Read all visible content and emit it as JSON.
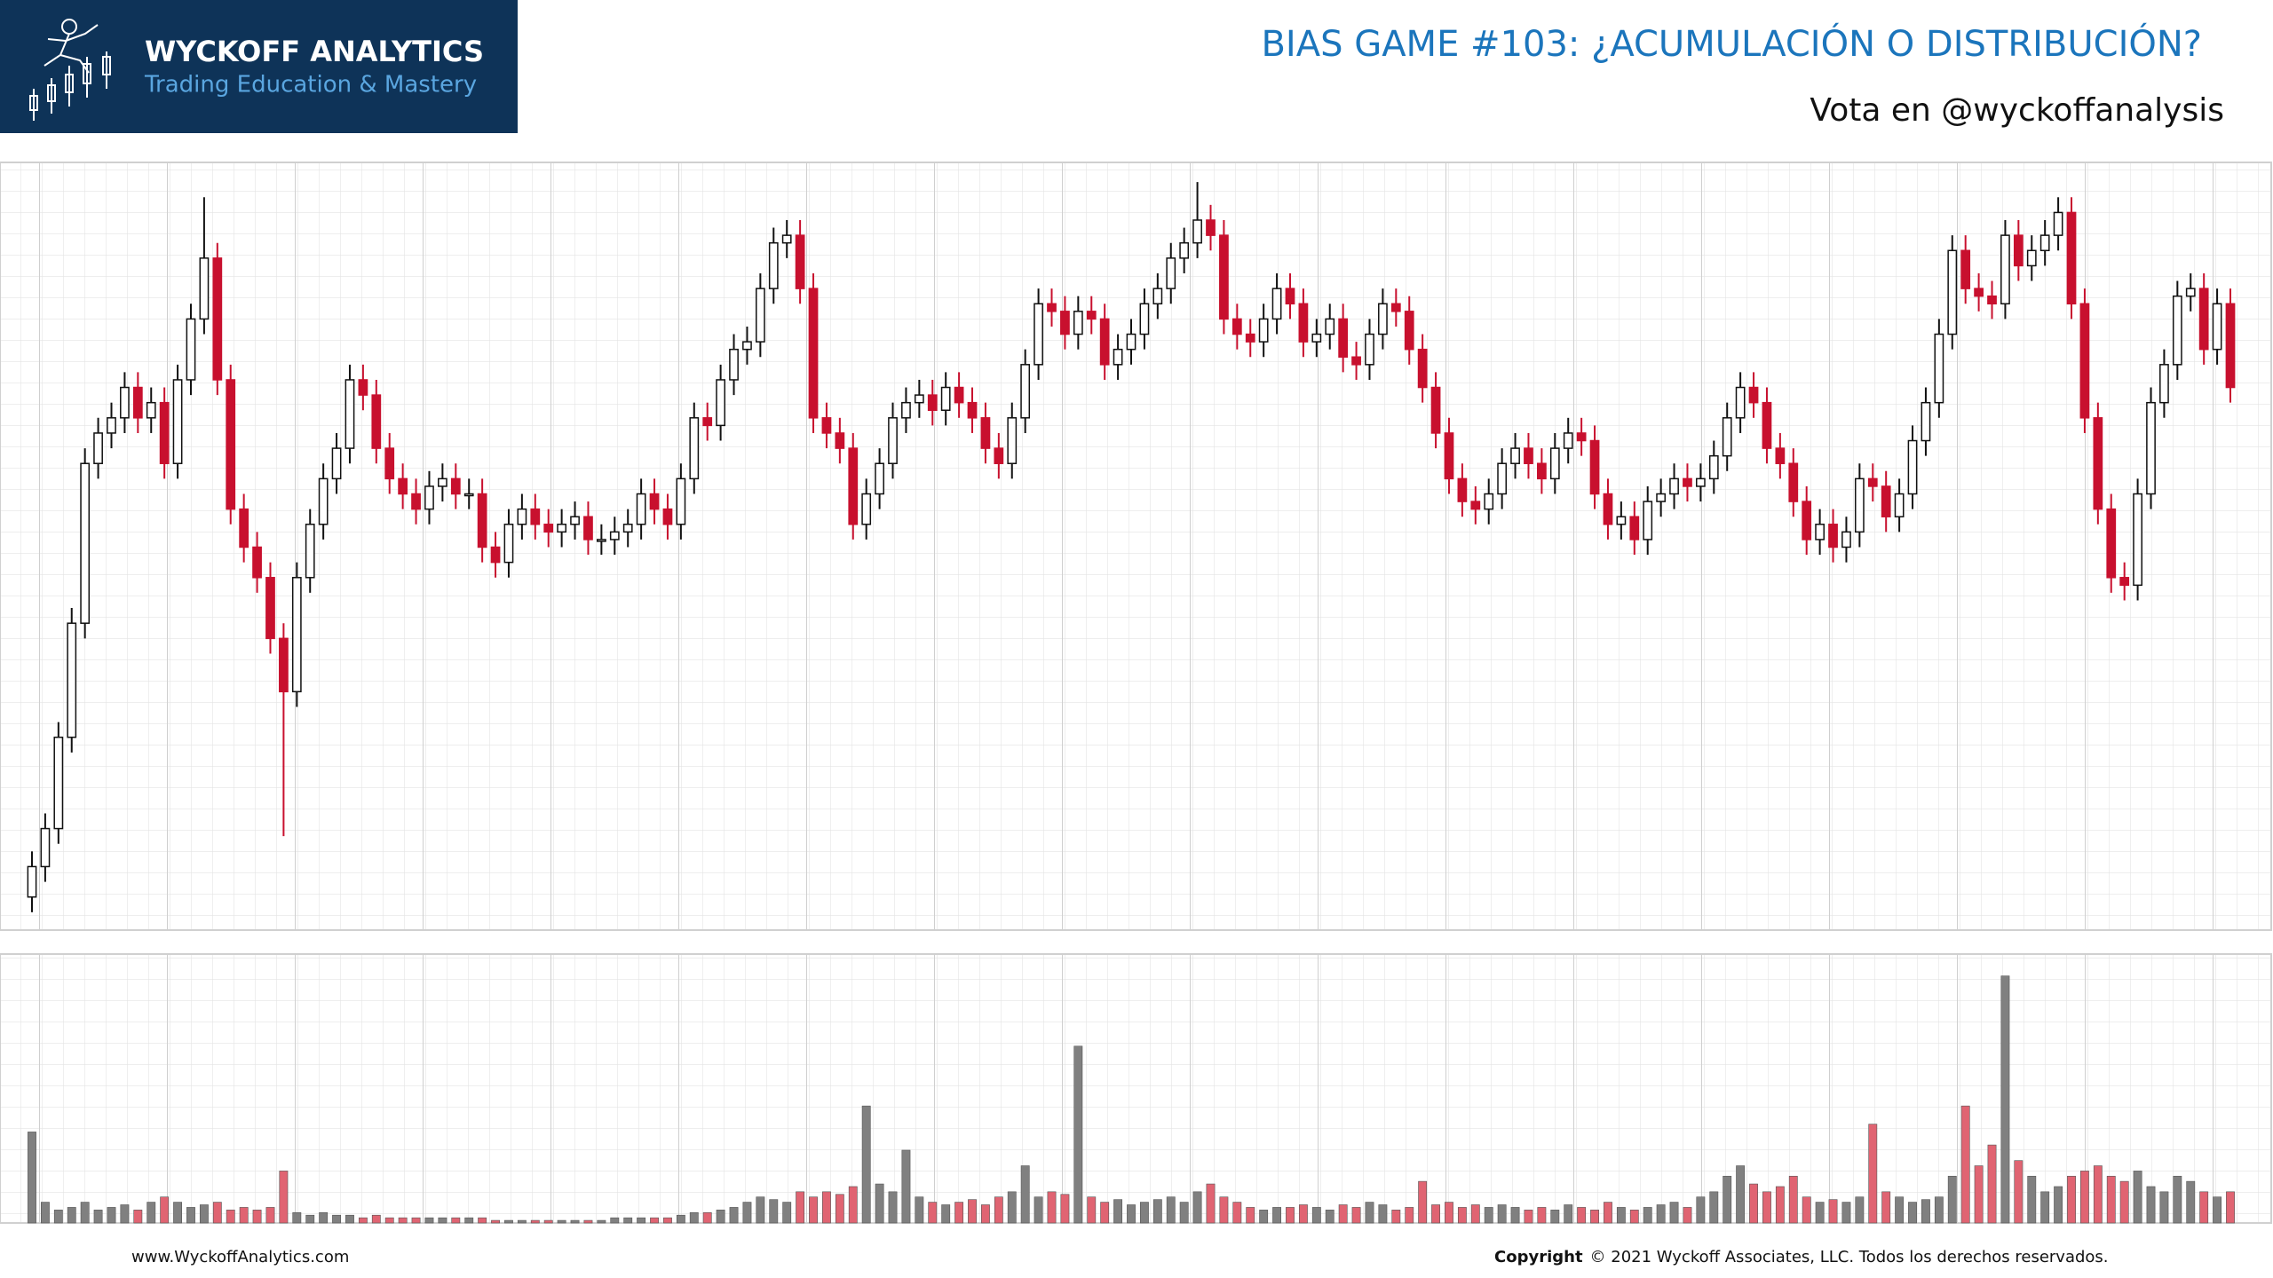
{
  "header": {
    "logo_title": "WYCKOFF ANALYTICS",
    "logo_subtitle": "Trading Education & Mastery"
  },
  "chart_data": {
    "type": "candlestick",
    "title": "BIAS GAME #103: ¿ACUMULACIÓN O DISTRIBUCIÓN?",
    "subtitle": "Vota en @wyckoffanalysis",
    "ylim": [
      0,
      100
    ],
    "volume_ylim": [
      0,
      100
    ],
    "up_color": "#ffffff",
    "down_color": "#c8102e",
    "volume_up_color": "#808080",
    "volume_down_color": "#e06472",
    "open": [
      4,
      8,
      13,
      25,
      40,
      61,
      65,
      67,
      71,
      67,
      69,
      61,
      72,
      80,
      88,
      72,
      55,
      50,
      46,
      38,
      31,
      46,
      53,
      59,
      63,
      72,
      70,
      63,
      59,
      57,
      55,
      58,
      59,
      57,
      57,
      50,
      48,
      53,
      55,
      53,
      52,
      53,
      54,
      51,
      51,
      52,
      53,
      57,
      55,
      53,
      59,
      67,
      66,
      72,
      76,
      77,
      84,
      90,
      91,
      84,
      67,
      65,
      63,
      53,
      57,
      61,
      67,
      69,
      70,
      68,
      71,
      69,
      67,
      63,
      61,
      67,
      74,
      82,
      81,
      78,
      81,
      80,
      74,
      76,
      78,
      82,
      84,
      88,
      90,
      93,
      91,
      80,
      78,
      77,
      80,
      84,
      82,
      77,
      78,
      80,
      75,
      74,
      78,
      82,
      81,
      76,
      71,
      65,
      59,
      56,
      55,
      57,
      61,
      63,
      61,
      59,
      63,
      65,
      64,
      57,
      53,
      54,
      51,
      56,
      57,
      59,
      58,
      59,
      62,
      67,
      71,
      69,
      63,
      61,
      56,
      51,
      53,
      50,
      52,
      59,
      58,
      54,
      57,
      64,
      69,
      78,
      89,
      84,
      83,
      82,
      91,
      87,
      89,
      91,
      94,
      82,
      67,
      55,
      46,
      45,
      57,
      69,
      74,
      83,
      84,
      76,
      82
    ],
    "high": [
      10,
      15,
      27,
      42,
      63,
      67,
      69,
      73,
      73,
      71,
      71,
      74,
      82,
      96,
      90,
      74,
      57,
      52,
      48,
      40,
      48,
      55,
      61,
      65,
      74,
      74,
      72,
      65,
      61,
      59,
      60,
      61,
      61,
      59,
      59,
      52,
      55,
      57,
      57,
      55,
      55,
      56,
      56,
      53,
      54,
      55,
      59,
      59,
      57,
      61,
      69,
      69,
      74,
      78,
      79,
      86,
      92,
      93,
      93,
      86,
      69,
      67,
      65,
      59,
      63,
      69,
      71,
      72,
      72,
      73,
      73,
      71,
      69,
      65,
      69,
      76,
      84,
      84,
      83,
      83,
      83,
      82,
      78,
      80,
      84,
      86,
      90,
      92,
      98,
      95,
      93,
      82,
      80,
      82,
      86,
      86,
      84,
      80,
      82,
      82,
      77,
      80,
      84,
      84,
      83,
      78,
      73,
      67,
      61,
      58,
      59,
      63,
      65,
      65,
      63,
      65,
      67,
      67,
      66,
      59,
      56,
      56,
      58,
      59,
      61,
      61,
      61,
      64,
      69,
      73,
      73,
      71,
      65,
      63,
      58,
      55,
      55,
      54,
      61,
      61,
      60,
      59,
      66,
      71,
      80,
      91,
      91,
      86,
      85,
      93,
      93,
      91,
      93,
      96,
      96,
      84,
      69,
      57,
      48,
      59,
      71,
      76,
      85,
      86,
      86,
      84,
      84
    ],
    "low": [
      2,
      6,
      11,
      23,
      38,
      59,
      63,
      65,
      65,
      65,
      59,
      59,
      70,
      78,
      70,
      53,
      48,
      44,
      36,
      12,
      29,
      44,
      51,
      57,
      61,
      68,
      61,
      57,
      55,
      53,
      53,
      56,
      55,
      55,
      48,
      46,
      46,
      51,
      51,
      50,
      50,
      51,
      49,
      49,
      49,
      50,
      51,
      53,
      51,
      51,
      57,
      64,
      64,
      70,
      74,
      75,
      82,
      88,
      82,
      65,
      63,
      61,
      51,
      51,
      55,
      59,
      65,
      67,
      66,
      66,
      67,
      65,
      61,
      59,
      59,
      65,
      72,
      79,
      76,
      76,
      78,
      72,
      72,
      74,
      76,
      80,
      82,
      86,
      88,
      89,
      78,
      76,
      75,
      75,
      78,
      80,
      75,
      75,
      76,
      73,
      72,
      72,
      76,
      79,
      74,
      69,
      63,
      57,
      54,
      53,
      53,
      55,
      59,
      59,
      57,
      57,
      61,
      62,
      55,
      51,
      51,
      49,
      49,
      54,
      55,
      56,
      56,
      57,
      60,
      65,
      67,
      61,
      59,
      54,
      49,
      49,
      48,
      48,
      50,
      56,
      52,
      52,
      55,
      62,
      67,
      76,
      82,
      81,
      80,
      80,
      85,
      85,
      87,
      89,
      80,
      65,
      53,
      44,
      43,
      43,
      55,
      67,
      72,
      81,
      74,
      74,
      69
    ],
    "close": [
      8,
      13,
      25,
      40,
      61,
      65,
      67,
      71,
      67,
      69,
      61,
      72,
      80,
      88,
      72,
      55,
      50,
      46,
      38,
      31,
      46,
      53,
      59,
      63,
      72,
      70,
      63,
      59,
      57,
      55,
      58,
      59,
      57,
      57,
      50,
      48,
      53,
      55,
      53,
      52,
      53,
      54,
      51,
      51,
      52,
      53,
      57,
      55,
      53,
      59,
      67,
      66,
      72,
      76,
      77,
      84,
      90,
      91,
      84,
      67,
      65,
      63,
      53,
      57,
      61,
      67,
      69,
      70,
      68,
      71,
      69,
      67,
      63,
      61,
      67,
      74,
      82,
      81,
      78,
      81,
      80,
      74,
      76,
      78,
      82,
      84,
      88,
      90,
      93,
      91,
      80,
      78,
      77,
      80,
      84,
      82,
      77,
      78,
      80,
      75,
      74,
      78,
      82,
      81,
      76,
      71,
      65,
      59,
      56,
      55,
      57,
      61,
      63,
      61,
      59,
      63,
      65,
      64,
      57,
      53,
      54,
      51,
      56,
      57,
      59,
      58,
      59,
      62,
      67,
      71,
      69,
      63,
      61,
      56,
      51,
      53,
      50,
      52,
      59,
      58,
      54,
      57,
      64,
      69,
      78,
      89,
      84,
      83,
      82,
      91,
      87,
      89,
      91,
      94,
      82,
      67,
      55,
      46,
      45,
      57,
      69,
      74,
      83,
      84,
      76,
      82,
      71
    ],
    "volume": [
      35,
      8,
      5,
      6,
      8,
      5,
      6,
      7,
      5,
      8,
      10,
      8,
      6,
      7,
      8,
      5,
      6,
      5,
      6,
      20,
      4,
      3,
      4,
      3,
      3,
      2,
      3,
      2,
      2,
      2,
      2,
      2,
      2,
      2,
      2,
      1,
      1,
      1,
      1,
      1,
      1,
      1,
      1,
      1,
      2,
      2,
      2,
      2,
      2,
      3,
      4,
      4,
      5,
      6,
      8,
      10,
      9,
      8,
      12,
      10,
      12,
      11,
      14,
      45,
      15,
      12,
      28,
      10,
      8,
      7,
      8,
      9,
      7,
      10,
      12,
      22,
      10,
      12,
      11,
      68,
      10,
      8,
      9,
      7,
      8,
      9,
      10,
      8,
      12,
      15,
      10,
      8,
      6,
      5,
      6,
      6,
      7,
      6,
      5,
      7,
      6,
      8,
      7,
      5,
      6,
      16,
      7,
      8,
      6,
      7,
      6,
      7,
      6,
      5,
      6,
      5,
      7,
      6,
      5,
      8,
      6,
      5,
      6,
      7,
      8,
      6,
      10,
      12,
      18,
      22,
      15,
      12,
      14,
      18,
      10,
      8,
      9,
      8,
      10,
      38,
      12,
      10,
      8,
      9,
      10,
      18,
      45,
      22,
      30,
      95,
      24,
      18,
      12,
      14,
      18,
      20,
      22,
      18,
      16,
      20,
      14,
      12,
      18,
      16,
      12,
      10,
      12
    ]
  },
  "footer": {
    "website": "www.WyckoffAnalytics.com",
    "copyright_label": "Copyright",
    "copyright_text": "© 2021 Wyckoff Associates, LLC. Todos los derechos reservados."
  }
}
